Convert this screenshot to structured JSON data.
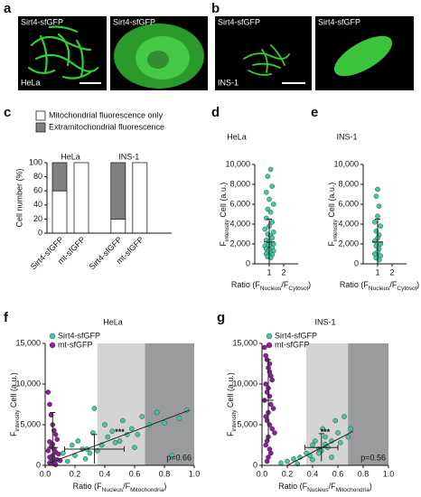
{
  "images": [
    {
      "panel": "a",
      "captions": [
        "Sirt4-sfGFP",
        "Sirt4-sfGFP"
      ],
      "cell": "HeLa"
    },
    {
      "panel": "b",
      "captions": [
        "Sirt4-sfGFP",
        "Sirt4-sfGFP"
      ],
      "cell": "INS-1"
    }
  ],
  "chart_data": [
    {
      "type": "bar",
      "panel": "c",
      "ylabel": "Cell number (%)",
      "categories": [
        "Sirt4-sfGFP",
        "mt-sfGFP",
        "Sirt4-sfGFP",
        "mt-sfGFP"
      ],
      "groups": [
        "HeLa",
        "INS-1"
      ],
      "series": [
        {
          "name": "Mitochondrial fluorescence only",
          "color": "#ffffff",
          "values": [
            60,
            100,
            20,
            100
          ]
        },
        {
          "name": "Extramitochondrial fluorescence",
          "color": "#808080",
          "values": [
            40,
            0,
            80,
            0
          ]
        }
      ],
      "ylim": [
        0,
        100
      ],
      "yticks": [
        0,
        20,
        40,
        60,
        80,
        100
      ]
    },
    {
      "type": "scatter",
      "panel": "d",
      "title": "HeLa",
      "ylabel": [
        "F",
        "intensity",
        " Cell (a.u.)"
      ],
      "xlabel": [
        "Ratio (F",
        "Nucleus",
        "/F",
        "Cytosol",
        ")"
      ],
      "xlim": [
        0,
        3
      ],
      "xticks": [
        1,
        2
      ],
      "ylim": [
        0,
        10000
      ],
      "yticks": [
        0,
        {
          "value": 2000,
          "label": "2,000"
        },
        {
          "value": 4000,
          "label": "4,000"
        },
        {
          "value": 6000,
          "label": "6,000"
        },
        {
          "value": 8000,
          "label": "8,000"
        },
        {
          "value": 10000,
          "label": "10,000"
        }
      ],
      "series": [
        {
          "color": "#40c9a2",
          "x": [
            1.1,
            0.9,
            1.2,
            0.8,
            1.0,
            1.3,
            0.9,
            1.1,
            0.8,
            1.2,
            1.0,
            0.7,
            1.3,
            0.9,
            1.1,
            1.2,
            0.8,
            1.0,
            1.3,
            0.9,
            0.7,
            1.1,
            1.2,
            0.8,
            1.0,
            1.3,
            0.9,
            1.1,
            0.8,
            1.2,
            1.0,
            0.9,
            1.1
          ],
          "values": [
            9500,
            8800,
            7800,
            7200,
            6500,
            6000,
            5500,
            5200,
            4600,
            4200,
            3800,
            3500,
            3200,
            3000,
            2800,
            2600,
            2400,
            2200,
            2000,
            1900,
            1800,
            1700,
            1600,
            1500,
            1400,
            1300,
            1200,
            1100,
            1000,
            900,
            800,
            700,
            600
          ],
          "summary": {
            "x": 1,
            "y": 2200,
            "yerr": 2300
          }
        }
      ]
    },
    {
      "type": "scatter",
      "panel": "e",
      "title": "INS-1",
      "ylabel": [
        "F",
        "intensity",
        " Cell (a.u.)"
      ],
      "xlabel": [
        "Ratio (F",
        "Nucleus",
        "/F",
        "Cytosol",
        ")"
      ],
      "xlim": [
        0,
        3
      ],
      "xticks": [
        1,
        2
      ],
      "ylim": [
        0,
        10000
      ],
      "yticks": [
        0,
        {
          "value": 2000,
          "label": "2,000"
        },
        {
          "value": 4000,
          "label": "4,000"
        },
        {
          "value": 6000,
          "label": "6,000"
        },
        {
          "value": 8000,
          "label": "8,000"
        },
        {
          "value": 10000,
          "label": "10,000"
        }
      ],
      "series": [
        {
          "color": "#40c9a2",
          "x": [
            1.0,
            0.9,
            1.1,
            1.0,
            0.8,
            1.2,
            0.9,
            1.1,
            1.0,
            0.8,
            1.2,
            0.9,
            1.1,
            1.0,
            0.8,
            1.2,
            0.9,
            1.1
          ],
          "values": [
            7500,
            6800,
            5800,
            4800,
            4200,
            3800,
            3300,
            2900,
            2600,
            2300,
            2000,
            1800,
            1500,
            1200,
            1000,
            800,
            600,
            400
          ],
          "summary": {
            "x": 1,
            "y": 2200,
            "yerr": 2300
          }
        }
      ]
    },
    {
      "type": "scatter",
      "panel": "f",
      "title": "HeLa",
      "ylabel": [
        "F",
        "intensity",
        " Cell (a.u.)"
      ],
      "xlabel": [
        "Ratio (F",
        "Nucleus",
        "/F",
        "Mitochondria",
        ")"
      ],
      "xlim": [
        0,
        1
      ],
      "xticks": [
        {
          "value": 0,
          "label": "0.0"
        },
        0.2,
        0.4,
        0.6,
        0.8,
        {
          "value": 1,
          "label": "1.0"
        }
      ],
      "ylim": [
        0,
        15000
      ],
      "yticks": [
        0,
        {
          "value": 5000,
          "label": "5,000"
        },
        {
          "value": 10000,
          "label": "10,000"
        },
        {
          "value": 15000,
          "label": "15,000"
        }
      ],
      "bands": [
        {
          "x": [
            0.35,
            0.67
          ],
          "color": "#d4d4d4"
        },
        {
          "x": [
            0.67,
            1.0
          ],
          "color": "#9a9b9d"
        }
      ],
      "annotations": [
        "***",
        "p=0.66"
      ],
      "series": [
        {
          "name": "Sirt4-sfGFP",
          "color": "#40c9a2",
          "x": [
            0.12,
            0.15,
            0.18,
            0.2,
            0.22,
            0.25,
            0.27,
            0.3,
            0.32,
            0.35,
            0.38,
            0.4,
            0.42,
            0.45,
            0.47,
            0.5,
            0.52,
            0.55,
            0.58,
            0.6,
            0.62,
            0.65,
            0.7,
            0.75,
            0.8,
            0.85,
            0.9,
            0.95,
            0.33,
            0.28
          ],
          "values": [
            1500,
            500,
            2500,
            1200,
            3000,
            2000,
            800,
            1500,
            4000,
            1800,
            2500,
            5000,
            3500,
            4200,
            2800,
            3000,
            5500,
            3800,
            4500,
            2200,
            3800,
            6000,
            5000,
            6500,
            5200,
            1200,
            5800,
            6800,
            7000,
            2000
          ],
          "summary": {
            "x": 0.33,
            "xerr": 0.2,
            "y": 2000,
            "yerr": 1800
          }
        },
        {
          "name": "mt-sfGFP",
          "color": "#8e1d9e",
          "x": [
            0.02,
            0.03,
            0.04,
            0.05,
            0.06,
            0.07,
            0.08,
            0.03,
            0.05,
            0.04,
            0.06,
            0.02,
            0.07,
            0.09,
            0.05,
            0.03,
            0.04,
            0.06,
            0.08,
            0.1,
            0.05,
            0.04,
            0.03,
            0.06,
            0.07
          ],
          "values": [
            9000,
            7500,
            6200,
            5000,
            4300,
            3800,
            3200,
            2900,
            2600,
            2300,
            2000,
            1800,
            1600,
            1400,
            1200,
            1000,
            900,
            800,
            700,
            600,
            500,
            400,
            300,
            200,
            100
          ],
          "summary": {
            "x": 0.05,
            "y": 2200,
            "yerr": 4300
          }
        }
      ],
      "fit": {
        "x": [
          0.03,
          0.97
        ],
        "y": [
          300,
          6800
        ]
      }
    },
    {
      "type": "scatter",
      "panel": "g",
      "title": "INS-1",
      "ylabel": [
        "F",
        "intensity",
        " Cell (a.u.)"
      ],
      "xlabel": [
        "Ratio (F",
        "Nucleus",
        "/F",
        "Mitochondria",
        ")"
      ],
      "xlim": [
        0,
        1
      ],
      "xticks": [
        {
          "value": 0,
          "label": "0.0"
        },
        0.2,
        0.4,
        0.6,
        0.8,
        {
          "value": 1,
          "label": "1.0"
        }
      ],
      "ylim": [
        0,
        15000
      ],
      "yticks": [
        0,
        {
          "value": 5000,
          "label": "5,000"
        },
        {
          "value": 10000,
          "label": "10,000"
        },
        {
          "value": 15000,
          "label": "15,000"
        }
      ],
      "bands": [
        {
          "x": [
            0.35,
            0.68
          ],
          "color": "#d4d4d4"
        },
        {
          "x": [
            0.68,
            1.0
          ],
          "color": "#9a9b9d"
        }
      ],
      "annotations": [
        "***",
        "p=0.56"
      ],
      "series": [
        {
          "name": "Sirt4-sfGFP",
          "color": "#40c9a2",
          "x": [
            0.15,
            0.2,
            0.25,
            0.28,
            0.3,
            0.35,
            0.38,
            0.4,
            0.42,
            0.45,
            0.47,
            0.48,
            0.5,
            0.52,
            0.55,
            0.58,
            0.6,
            0.62,
            0.65,
            0.68,
            0.7,
            0.4,
            0.45,
            0.5,
            0.55
          ],
          "values": [
            300,
            500,
            800,
            200,
            1000,
            1500,
            1200,
            2500,
            3000,
            2000,
            1800,
            4500,
            3500,
            2200,
            3000,
            5500,
            4000,
            2800,
            6000,
            3500,
            4500,
            700,
            1500,
            2600,
            1000
          ],
          "summary": {
            "x": 0.47,
            "xerr": 0.13,
            "y": 2200,
            "yerr": 1700
          }
        },
        {
          "name": "mt-sfGFP",
          "color": "#8e1d9e",
          "x": [
            0.02,
            0.03,
            0.04,
            0.05,
            0.06,
            0.07,
            0.08,
            0.03,
            0.05,
            0.04,
            0.06,
            0.02,
            0.07,
            0.09,
            0.05,
            0.03,
            0.04,
            0.06,
            0.08,
            0.1,
            0.05,
            0.04,
            0.03,
            0.06,
            0.07,
            0.05,
            0.04,
            0.06
          ],
          "values": [
            14500,
            13500,
            13000,
            12000,
            11500,
            11000,
            10500,
            10000,
            9500,
            9000,
            8500,
            8000,
            7500,
            7000,
            6500,
            6000,
            5500,
            5000,
            4500,
            4000,
            3500,
            3000,
            2500,
            2000,
            1500,
            1000,
            500,
            12500
          ],
          "summary": {
            "x": 0.05,
            "y": 8000,
            "yerr": 5000
          }
        }
      ],
      "fit": {
        "x": [
          0.2,
          0.72
        ],
        "y": [
          0,
          4200
        ]
      }
    }
  ]
}
